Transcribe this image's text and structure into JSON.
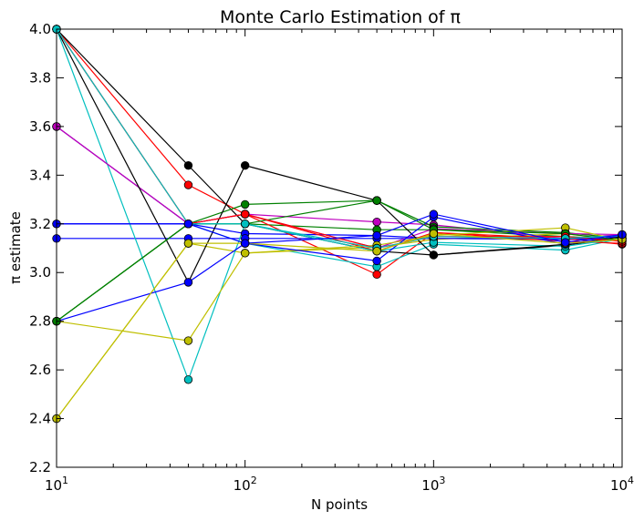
{
  "chart_data": {
    "type": "line",
    "title": "Monte Carlo Estimation of π",
    "xlabel": "N points",
    "ylabel": "π estimate",
    "xscale": "log",
    "xlim": [
      10,
      10000
    ],
    "ylim": [
      2.2,
      4.0
    ],
    "x": [
      10,
      50,
      100,
      500,
      1000,
      5000,
      10000
    ],
    "xticks": [
      {
        "value": 10,
        "base": "10",
        "exp": "1"
      },
      {
        "value": 100,
        "base": "10",
        "exp": "2"
      },
      {
        "value": 1000,
        "base": "10",
        "exp": "3"
      },
      {
        "value": 10000,
        "base": "10",
        "exp": "4"
      }
    ],
    "yticks": [
      {
        "value": 2.2,
        "label": "2.2"
      },
      {
        "value": 2.4,
        "label": "2.4"
      },
      {
        "value": 2.6,
        "label": "2.6"
      },
      {
        "value": 2.8,
        "label": "2.8"
      },
      {
        "value": 3.0,
        "label": "3.0"
      },
      {
        "value": 3.2,
        "label": "3.2"
      },
      {
        "value": 3.4,
        "label": "3.4"
      },
      {
        "value": 3.6,
        "label": "3.6"
      },
      {
        "value": 3.8,
        "label": "3.8"
      },
      {
        "value": 4.0,
        "label": "4.0"
      }
    ],
    "grid": false,
    "legend": "none",
    "series": [
      {
        "color": "#0000ff",
        "values": [
          3.2,
          3.2,
          3.16,
          3.152,
          3.14,
          3.136,
          3.14
        ]
      },
      {
        "color": "#008000",
        "values": [
          2.8,
          3.2,
          3.2,
          3.176,
          3.176,
          3.148,
          3.136
        ]
      },
      {
        "color": "#ff0000",
        "values": [
          4.0,
          3.36,
          3.24,
          2.992,
          3.164,
          3.14,
          3.116
        ]
      },
      {
        "color": "#00bfbf",
        "values": [
          3.6,
          3.2,
          3.12,
          3.024,
          3.116,
          3.092,
          3.14
        ]
      },
      {
        "color": "#bf00bf",
        "values": [
          3.6,
          3.2,
          3.24,
          3.208,
          3.196,
          3.14,
          3.156
        ]
      },
      {
        "color": "#bfbf00",
        "values": [
          2.4,
          3.12,
          3.08,
          3.104,
          3.136,
          3.16,
          3.128
        ]
      },
      {
        "color": "#000000",
        "values": [
          4.0,
          3.44,
          3.2,
          3.088,
          3.072,
          3.112,
          3.144
        ]
      },
      {
        "color": "#0000ff",
        "values": [
          3.14,
          3.14,
          3.14,
          3.14,
          3.14,
          3.14,
          3.14
        ]
      },
      {
        "color": "#008000",
        "values": [
          2.8,
          3.2,
          3.28,
          3.296,
          3.188,
          3.164,
          3.14
        ]
      },
      {
        "color": "#ff0000",
        "values": [
          4.0,
          3.2,
          3.24,
          3.088,
          3.164,
          3.128,
          3.12
        ]
      },
      {
        "color": "#00bfbf",
        "values": [
          4.0,
          2.56,
          3.2,
          3.088,
          3.124,
          3.108,
          3.14
        ]
      },
      {
        "color": "#bf00bf",
        "values": [
          3.6,
          3.2,
          3.24,
          3.1,
          3.18,
          3.16,
          3.156
        ]
      },
      {
        "color": "#bfbf00",
        "values": [
          2.8,
          2.72,
          3.08,
          3.112,
          3.152,
          3.184,
          3.132
        ]
      },
      {
        "color": "#000000",
        "values": [
          4.0,
          2.96,
          3.44,
          3.296,
          3.072,
          3.116,
          3.148
        ]
      },
      {
        "color": "#0000ff",
        "values": [
          2.8,
          2.96,
          3.12,
          3.048,
          3.228,
          3.116,
          3.152
        ]
      },
      {
        "color": "#008000",
        "values": [
          2.8,
          3.2,
          3.2,
          3.296,
          3.176,
          3.16,
          3.132
        ]
      },
      {
        "color": "#ff0000",
        "values": [
          4.0,
          3.2,
          3.24,
          3.1,
          3.148,
          3.148,
          3.128
        ]
      },
      {
        "color": "#00bfbf",
        "values": [
          4.0,
          3.2,
          3.2,
          3.1,
          3.148,
          3.14,
          3.152
        ]
      },
      {
        "color": "#bfbf00",
        "values": [
          2.4,
          3.12,
          3.12,
          3.088,
          3.16,
          3.12,
          3.136
        ]
      },
      {
        "color": "#0000ff",
        "values": [
          3.2,
          3.2,
          3.12,
          3.152,
          3.24,
          3.124,
          3.156
        ]
      }
    ]
  }
}
